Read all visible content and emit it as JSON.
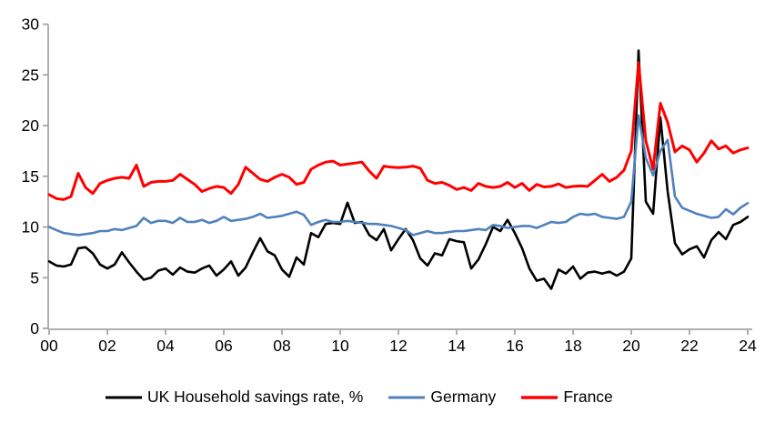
{
  "chart_data": {
    "type": "line",
    "title": "",
    "xlabel": "",
    "ylabel": "",
    "x_start_year": 2000,
    "x_quarter_step": 0.25,
    "xlim": [
      2000,
      2024
    ],
    "ylim": [
      0,
      30
    ],
    "grid": false,
    "legend_position": "bottom",
    "x_tick_labels": [
      "00",
      "02",
      "04",
      "06",
      "08",
      "10",
      "12",
      "14",
      "16",
      "18",
      "20",
      "22",
      "24"
    ],
    "y_tick_labels": [
      "0",
      "5",
      "10",
      "15",
      "20",
      "25",
      "30"
    ],
    "y_tick_values": [
      0,
      5,
      10,
      15,
      20,
      25,
      30
    ],
    "series": [
      {
        "name": "UK Household savings rate, %",
        "color": "#000000",
        "stroke_width": 2.6,
        "values": [
          6.6,
          6.2,
          6.1,
          6.3,
          7.9,
          8.0,
          7.4,
          6.3,
          5.9,
          6.3,
          7.5,
          6.5,
          5.6,
          4.8,
          5.0,
          5.7,
          5.9,
          5.3,
          6.0,
          5.6,
          5.5,
          5.9,
          6.2,
          5.2,
          5.8,
          6.6,
          5.2,
          6.0,
          7.5,
          8.9,
          7.6,
          7.2,
          5.8,
          5.1,
          7.0,
          6.3,
          9.4,
          9.0,
          10.3,
          10.4,
          10.3,
          12.4,
          10.4,
          10.5,
          9.2,
          8.7,
          9.8,
          7.7,
          8.8,
          9.8,
          8.7,
          6.9,
          6.2,
          7.4,
          7.2,
          8.8,
          8.6,
          8.5,
          5.9,
          6.8,
          8.3,
          10.0,
          9.6,
          10.7,
          9.4,
          7.9,
          5.9,
          4.7,
          4.9,
          3.9,
          5.8,
          5.4,
          6.1,
          4.9,
          5.5,
          5.6,
          5.4,
          5.6,
          5.2,
          5.6,
          6.9,
          27.4,
          12.5,
          11.3,
          20.8,
          13.5,
          8.4,
          7.3,
          7.8,
          8.1,
          7.0,
          8.7,
          9.5,
          8.8,
          10.2,
          10.5,
          11.0
        ]
      },
      {
        "name": "Germany",
        "color": "#4F81BD",
        "stroke_width": 2.6,
        "values": [
          10.0,
          9.7,
          9.4,
          9.3,
          9.2,
          9.3,
          9.4,
          9.6,
          9.6,
          9.8,
          9.7,
          9.9,
          10.1,
          10.9,
          10.4,
          10.6,
          10.6,
          10.4,
          10.9,
          10.5,
          10.5,
          10.7,
          10.4,
          10.6,
          11.0,
          10.6,
          10.7,
          10.8,
          11.0,
          11.3,
          10.9,
          11.0,
          11.1,
          11.3,
          11.5,
          11.2,
          10.2,
          10.5,
          10.7,
          10.5,
          10.5,
          10.6,
          10.5,
          10.4,
          10.3,
          10.3,
          10.2,
          10.1,
          9.9,
          9.7,
          9.2,
          9.4,
          9.6,
          9.4,
          9.4,
          9.5,
          9.6,
          9.6,
          9.7,
          9.8,
          9.7,
          10.2,
          10.1,
          9.9,
          10.0,
          10.1,
          10.1,
          9.9,
          10.2,
          10.5,
          10.4,
          10.5,
          11.0,
          11.3,
          11.2,
          11.3,
          11.0,
          10.9,
          10.8,
          11.0,
          12.5,
          21.0,
          16.8,
          15.1,
          17.5,
          18.6,
          13.0,
          11.9,
          11.6,
          11.3,
          11.1,
          10.9,
          11.0,
          11.75,
          11.25,
          11.9,
          12.35
        ]
      },
      {
        "name": "France",
        "color": "#FF0000",
        "stroke_width": 3.0,
        "values": [
          13.2,
          12.8,
          12.7,
          13.0,
          15.3,
          13.9,
          13.3,
          14.3,
          14.6,
          14.8,
          14.9,
          14.8,
          16.1,
          14.0,
          14.4,
          14.5,
          14.5,
          14.6,
          15.2,
          14.7,
          14.2,
          13.5,
          13.8,
          14.0,
          13.9,
          13.3,
          14.2,
          15.9,
          15.3,
          14.7,
          14.5,
          14.9,
          15.2,
          14.9,
          14.2,
          14.4,
          15.7,
          16.1,
          16.4,
          16.5,
          16.1,
          16.2,
          16.3,
          16.4,
          15.5,
          14.8,
          16.0,
          15.9,
          15.85,
          15.9,
          16.0,
          15.8,
          14.6,
          14.3,
          14.4,
          14.1,
          13.7,
          13.9,
          13.6,
          14.3,
          14.0,
          13.9,
          14.0,
          14.4,
          13.9,
          14.3,
          13.6,
          14.2,
          13.95,
          14.0,
          14.25,
          13.9,
          14.0,
          14.05,
          14.0,
          14.6,
          15.2,
          14.5,
          14.9,
          15.6,
          17.5,
          26.2,
          18.5,
          15.7,
          22.2,
          20.3,
          17.4,
          18.0,
          17.6,
          16.4,
          17.3,
          18.5,
          17.7,
          18.0,
          17.3,
          17.6,
          17.8
        ]
      }
    ]
  },
  "colors": {
    "axis": "#A6A6A6",
    "tick_text": "#000000",
    "background": "#FFFFFF"
  }
}
